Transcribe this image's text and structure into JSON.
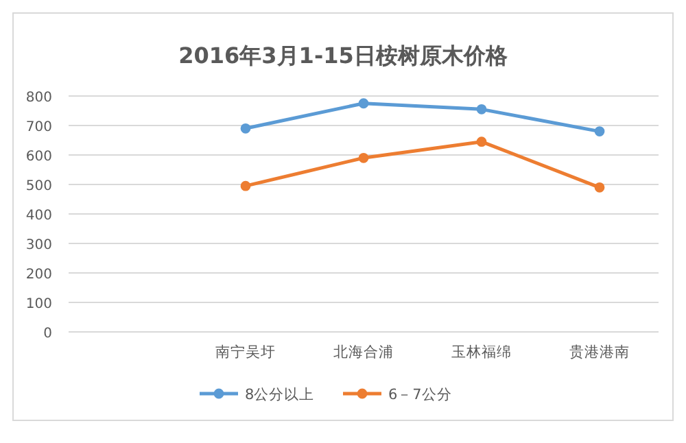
{
  "chart_data": {
    "type": "line",
    "title": "2016年3月1-15日桉树原木价格",
    "categories": [
      null,
      "南宁吴圩",
      "北海合浦",
      "玉林福绵",
      "贵港港南"
    ],
    "series": [
      {
        "name": "8公分以上",
        "color": "#5b9bd5",
        "values": [
          null,
          690,
          775,
          755,
          680
        ]
      },
      {
        "name": "6－7公分",
        "color": "#ed7d31",
        "values": [
          null,
          495,
          590,
          645,
          490
        ]
      }
    ],
    "ylim": [
      0,
      800
    ],
    "yticks": [
      0,
      100,
      200,
      300,
      400,
      500,
      600,
      700,
      800
    ],
    "grid": "y",
    "legend": "bottom",
    "marker": "circle"
  }
}
